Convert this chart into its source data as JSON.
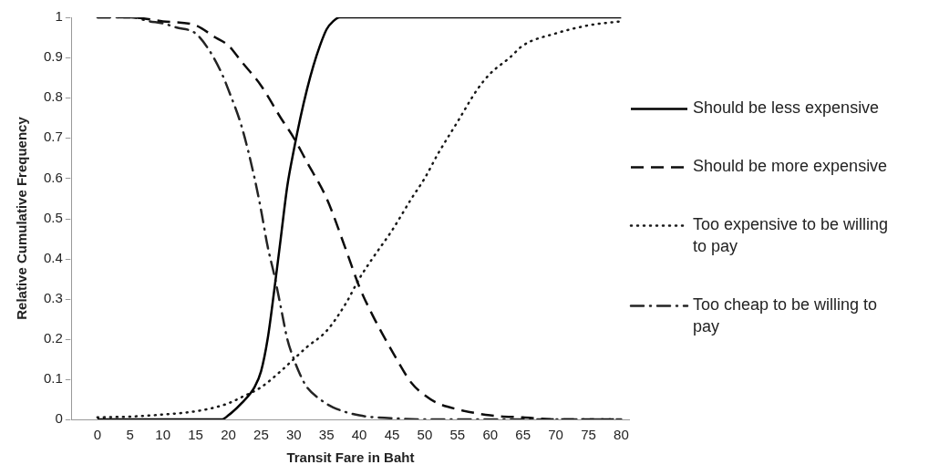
{
  "chart_data": {
    "type": "line",
    "xlabel": "Transit Fare in Baht",
    "ylabel": "Relative Cumulative Frequency",
    "xlim": [
      -3.9,
      81.2
    ],
    "xticks": [
      0,
      5,
      10,
      15,
      20,
      25,
      30,
      35,
      40,
      45,
      50,
      55,
      60,
      65,
      70,
      75,
      80
    ],
    "ylim": [
      0,
      1
    ],
    "yticks": [
      0,
      0.1,
      0.2,
      0.3,
      0.4,
      0.5,
      0.6,
      0.7,
      0.8,
      0.9,
      1
    ],
    "grid": false,
    "legend": "right",
    "marker": "none",
    "series": [
      {
        "name": "Should be less expensive",
        "color": "#000000",
        "line_style": "solid",
        "x": [
          0,
          10,
          17,
          19,
          20,
          22,
          24,
          25,
          26,
          27,
          28,
          29,
          30,
          31,
          32,
          33,
          34,
          35,
          36,
          37,
          40,
          50,
          60,
          70,
          80
        ],
        "values": [
          0,
          0,
          0,
          0,
          0.01,
          0.04,
          0.08,
          0.12,
          0.2,
          0.32,
          0.45,
          0.58,
          0.67,
          0.75,
          0.82,
          0.88,
          0.93,
          0.97,
          0.99,
          1,
          1,
          1,
          1,
          1,
          1
        ]
      },
      {
        "name": "Should be more expensive",
        "color": "#0c0c0c",
        "line_style": "dashed",
        "x": [
          0,
          5,
          10,
          15,
          18,
          20,
          22,
          25,
          28,
          30,
          32,
          35,
          38,
          40,
          42,
          45,
          48,
          50,
          52,
          55,
          60,
          65,
          70,
          80
        ],
        "values": [
          1,
          1,
          0.99,
          0.98,
          0.95,
          0.93,
          0.89,
          0.83,
          0.75,
          0.7,
          0.64,
          0.55,
          0.42,
          0.33,
          0.26,
          0.17,
          0.09,
          0.06,
          0.04,
          0.025,
          0.01,
          0.005,
          0,
          0
        ]
      },
      {
        "name": "Too expensive to be willing to pay",
        "color": "#181818",
        "line_style": "dotted",
        "x": [
          0,
          5,
          10,
          15,
          18,
          20,
          22,
          25,
          28,
          30,
          32,
          35,
          38,
          40,
          42,
          45,
          48,
          50,
          52,
          55,
          58,
          60,
          63,
          65,
          70,
          75,
          80
        ],
        "values": [
          0.005,
          0.007,
          0.012,
          0.02,
          0.03,
          0.04,
          0.055,
          0.08,
          0.12,
          0.15,
          0.18,
          0.22,
          0.29,
          0.35,
          0.4,
          0.47,
          0.55,
          0.6,
          0.66,
          0.74,
          0.82,
          0.86,
          0.9,
          0.93,
          0.96,
          0.98,
          0.99
        ]
      },
      {
        "name": "Too cheap to be willing to pay",
        "color": "#242424",
        "line_style": "dashdot",
        "x": [
          0,
          5,
          8,
          10,
          12,
          15,
          17,
          19,
          20,
          22,
          24,
          25,
          26,
          27,
          28,
          29,
          30,
          31,
          32,
          34,
          36,
          40,
          45,
          50,
          80
        ],
        "values": [
          1,
          1,
          0.99,
          0.985,
          0.975,
          0.96,
          0.92,
          0.86,
          0.82,
          0.73,
          0.6,
          0.52,
          0.43,
          0.36,
          0.28,
          0.2,
          0.15,
          0.11,
          0.08,
          0.05,
          0.03,
          0.01,
          0.003,
          0,
          0
        ]
      }
    ]
  }
}
